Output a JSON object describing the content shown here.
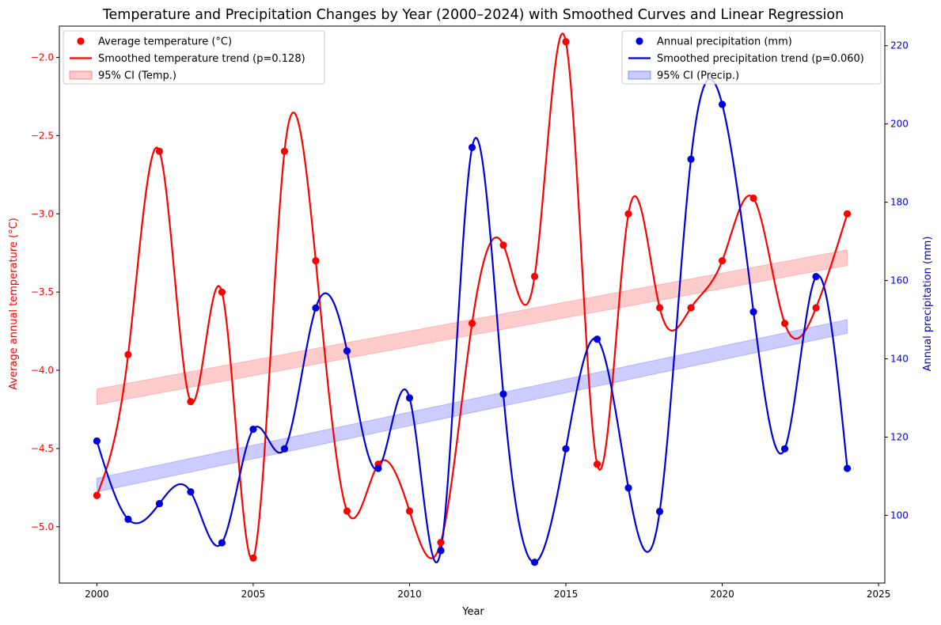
{
  "chart_data": {
    "type": "line",
    "title": "Temperature and Precipitation Changes by Year (2000–2024) with Smoothed Curves and Linear Regression",
    "xlabel": "Year",
    "ylabel_left": "Average annual temperature (°C)",
    "ylabel_right": "Annual precipitation (mm)",
    "xlim": [
      1998.8,
      2025.2
    ],
    "ylim_left": [
      -5.36,
      -1.8
    ],
    "ylim_right": [
      82.7,
      225.0
    ],
    "x_ticks": [
      2000,
      2005,
      2010,
      2015,
      2020,
      2025
    ],
    "y_ticks_left": [
      -5.0,
      -4.5,
      -4.0,
      -3.5,
      -3.0,
      -2.5,
      -2.0
    ],
    "y_ticks_right": [
      100,
      120,
      140,
      160,
      180,
      200,
      220
    ],
    "grid": false,
    "colors": {
      "temperature": "#ff0000",
      "temperature_ci": "#ff0000",
      "precipitation": "#0000d8",
      "precipitation_ci": "#0000ff"
    },
    "x": [
      2000,
      2001,
      2002,
      2003,
      2004,
      2005,
      2006,
      2007,
      2008,
      2009,
      2010,
      2011,
      2012,
      2013,
      2014,
      2015,
      2016,
      2017,
      2018,
      2019,
      2020,
      2021,
      2022,
      2023,
      2024
    ],
    "series": [
      {
        "name": "Average temperature (°C)",
        "axis": "left",
        "kind": "scatter",
        "values": [
          -4.8,
          -3.9,
          -2.6,
          -4.2,
          -3.5,
          -5.2,
          -2.6,
          -3.3,
          -4.9,
          -4.6,
          -4.9,
          -5.1,
          -3.7,
          -3.2,
          -3.4,
          -1.9,
          -4.6,
          -3.0,
          -3.6,
          -3.6,
          -3.3,
          -2.9,
          -3.7,
          -3.6,
          -3.0
        ]
      },
      {
        "name": "Smoothed temperature trend (p=0.128)",
        "axis": "left",
        "kind": "line",
        "values": [
          -4.8,
          -3.9,
          -2.6,
          -4.2,
          -3.5,
          -5.2,
          -2.6,
          -3.3,
          -4.9,
          -4.6,
          -4.9,
          -5.1,
          -3.7,
          -3.2,
          -3.4,
          -1.9,
          -4.6,
          -3.0,
          -3.6,
          -3.6,
          -3.3,
          -2.9,
          -3.7,
          -3.6,
          -3.0
        ]
      },
      {
        "name": "95% CI (Temp.)",
        "axis": "left",
        "kind": "band",
        "x": [
          2000,
          2024
        ],
        "lower": [
          -4.22,
          -3.33
        ],
        "upper": [
          -4.12,
          -3.23
        ]
      },
      {
        "name": "Annual precipitation (mm)",
        "axis": "right",
        "kind": "scatter",
        "values": [
          119,
          99,
          103,
          106,
          93,
          122,
          117,
          153,
          142,
          112,
          130,
          91,
          194,
          131,
          88,
          117,
          145,
          107,
          101,
          191,
          205,
          152,
          117,
          161,
          112
        ]
      },
      {
        "name": "Smoothed precipitation trend (p=0.060)",
        "axis": "right",
        "kind": "line",
        "values": [
          119,
          99,
          103,
          106,
          93,
          122,
          117,
          153,
          142,
          112,
          130,
          91,
          194,
          131,
          88,
          117,
          145,
          107,
          101,
          191,
          205,
          152,
          117,
          161,
          112
        ]
      },
      {
        "name": "95% CI (Precip.)",
        "axis": "right",
        "kind": "band",
        "x": [
          2000,
          2024
        ],
        "lower": [
          106,
          146.5
        ],
        "upper": [
          109.5,
          150
        ]
      }
    ],
    "legend_left": {
      "position": "top-left",
      "items": [
        "Average temperature (°C)",
        "Smoothed temperature trend (p=0.128)",
        "95% CI (Temp.)"
      ]
    },
    "legend_right": {
      "position": "top-right",
      "items": [
        "Annual precipitation (mm)",
        "Smoothed precipitation trend (p=0.060)",
        "95% CI (Precip.)"
      ]
    }
  }
}
